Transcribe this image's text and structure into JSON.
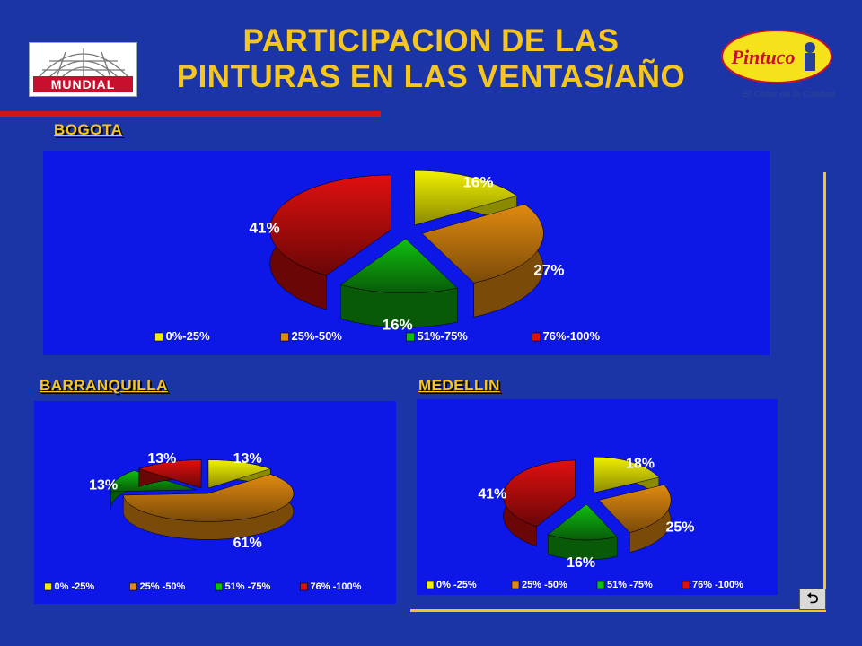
{
  "title": {
    "line1": "PARTICIPACION DE LAS",
    "line2": "PINTURAS EN LAS VENTAS/AÑO"
  },
  "logos": {
    "left_text": "MUNDIAL",
    "right_text": "Pintuco",
    "tagline": "El Color de la Calidad"
  },
  "colors": {
    "background": "#1c35a6",
    "panel": "#0d17e6",
    "title": "#f6c61d",
    "slice_0_25": "#f0f000",
    "slice_25_50": "#e08a10",
    "slice_51_75": "#10c010",
    "slice_76_100": "#e01010"
  },
  "chart_data": [
    {
      "type": "pie",
      "title": "BOGOTA",
      "categories": [
        "0%-25%",
        "25%-50%",
        "51%-75%",
        "76%-100%"
      ],
      "values": [
        16,
        27,
        16,
        41
      ],
      "labels": [
        "16%",
        "27%",
        "16%",
        "41%"
      ],
      "legend": "bottom"
    },
    {
      "type": "pie",
      "title": "BARRANQUILLA",
      "categories": [
        "0% -25%",
        "25% -50%",
        "51% -75%",
        "76% -100%"
      ],
      "values": [
        13,
        61,
        13,
        13
      ],
      "labels": [
        "13%",
        "61%",
        "13%",
        "13%"
      ],
      "legend": "bottom"
    },
    {
      "type": "pie",
      "title": "MEDELLIN",
      "categories": [
        "0% -25%",
        "25% -50%",
        "51% -75%",
        "76% -100%"
      ],
      "values": [
        18,
        25,
        16,
        41
      ],
      "labels": [
        "18%",
        "25%",
        "16%",
        "41%"
      ],
      "legend": "bottom"
    }
  ],
  "nav": {
    "return_icon": "return-arrow-icon",
    "return_glyph": "⮌"
  }
}
